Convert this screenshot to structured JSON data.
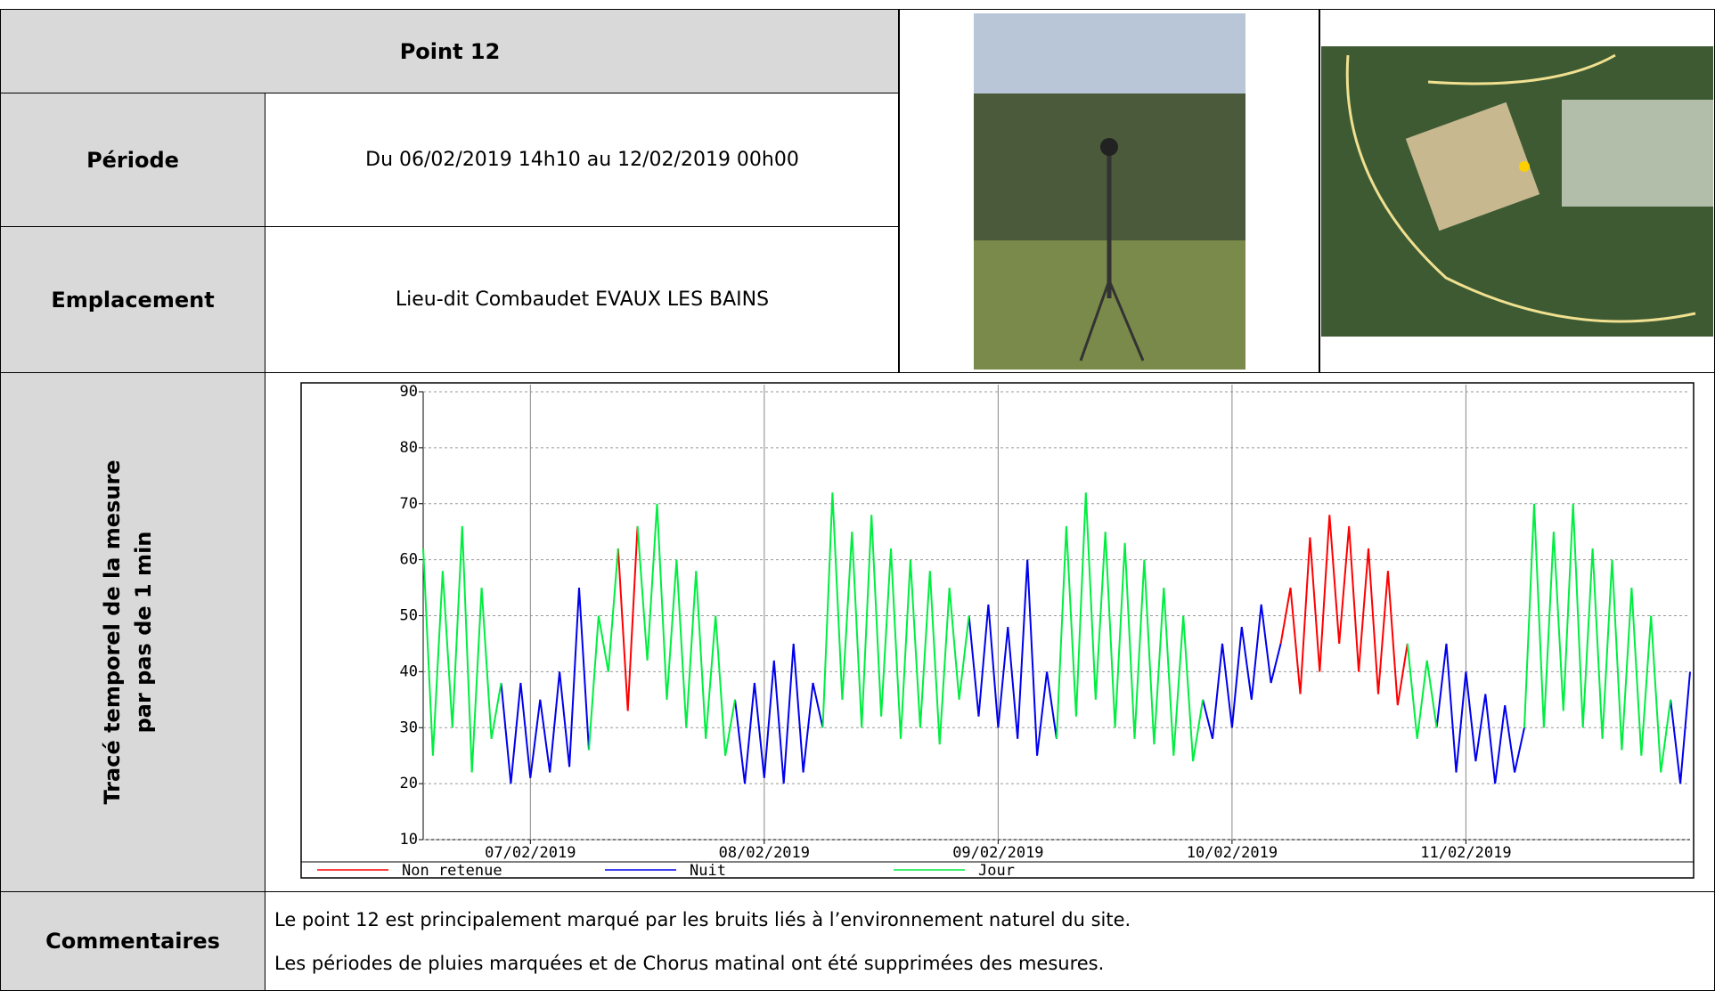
{
  "header": {
    "title": "Point 12"
  },
  "rows": [
    {
      "label": "Période",
      "value": "Du 06/02/2019 14h10 au 12/02/2019 00h00"
    },
    {
      "label": "Emplacement",
      "value": "Lieu-dit Combaudet EVAUX LES BAINS"
    }
  ],
  "chart_label": [
    "Tracé temporel de la mesure",
    "par pas de 1 min"
  ],
  "comments": {
    "label": "Commentaires",
    "lines": [
      "Le point 12 est principalement marqué par les bruits liés à l’environnement naturel du site.",
      "Les périodes de pluies marquées et de Chorus matinal ont été supprimées des mesures."
    ]
  },
  "chart_data": {
    "type": "line",
    "grid": true,
    "x": [
      13,
      14,
      15,
      16,
      17,
      18,
      19,
      20,
      21,
      22,
      23,
      24,
      25,
      26,
      27,
      28,
      29,
      30,
      31,
      32,
      33,
      34,
      35,
      36,
      37,
      38,
      39,
      40,
      41,
      42,
      43,
      44,
      45,
      46,
      47,
      48,
      49,
      50,
      51,
      52,
      53,
      54,
      55,
      56,
      57,
      58,
      59,
      60,
      61,
      62,
      63,
      64,
      65,
      66,
      67,
      68,
      69,
      70,
      71,
      72,
      73,
      74,
      75,
      76,
      77,
      78,
      79,
      80,
      81,
      82,
      83,
      84,
      85,
      86,
      87,
      88,
      89,
      90,
      91,
      92,
      93,
      94,
      95,
      96,
      97,
      98,
      99,
      100,
      101,
      102,
      103,
      104,
      105,
      106,
      107,
      108,
      109,
      110,
      111,
      112,
      113,
      114,
      115,
      116,
      117,
      118,
      119,
      120,
      121,
      122,
      123,
      124,
      125,
      126,
      127,
      128,
      129,
      130,
      131,
      132,
      133,
      134,
      135,
      136,
      137,
      138,
      139,
      140,
      141,
      142,
      143
    ],
    "xlim": [
      13,
      143
    ],
    "xticks": [
      {
        "value": 24,
        "label": "07/02/2019"
      },
      {
        "value": 48,
        "label": "08/02/2019"
      },
      {
        "value": 72,
        "label": "09/02/2019"
      },
      {
        "value": 96,
        "label": "10/02/2019"
      },
      {
        "value": 120,
        "label": "11/02/2019"
      }
    ],
    "ylim": [
      10,
      90
    ],
    "yticks": [
      10,
      20,
      30,
      40,
      50,
      60,
      70,
      80,
      90
    ],
    "series": [
      {
        "name": "Non retenue",
        "color": "#ff0000",
        "values": [
          null,
          null,
          null,
          null,
          null,
          null,
          null,
          null,
          null,
          null,
          null,
          null,
          null,
          null,
          null,
          null,
          null,
          null,
          null,
          null,
          62,
          33,
          66,
          null,
          null,
          null,
          null,
          null,
          null,
          null,
          null,
          null,
          null,
          null,
          null,
          null,
          null,
          null,
          null,
          null,
          null,
          null,
          null,
          null,
          null,
          null,
          null,
          null,
          null,
          null,
          null,
          null,
          null,
          null,
          null,
          null,
          null,
          null,
          null,
          null,
          null,
          null,
          null,
          null,
          null,
          null,
          null,
          null,
          null,
          null,
          null,
          null,
          null,
          null,
          null,
          null,
          null,
          null,
          null,
          null,
          null,
          null,
          null,
          null,
          null,
          null,
          null,
          null,
          45,
          55,
          36,
          64,
          40,
          68,
          45,
          66,
          40,
          62,
          36,
          58,
          34,
          45,
          null,
          null,
          null,
          null,
          null,
          null,
          null,
          null,
          null,
          null,
          null,
          null,
          null,
          null,
          null,
          null,
          null,
          null,
          null,
          null,
          null,
          null,
          null,
          null,
          null,
          null,
          null,
          null,
          null
        ]
      },
      {
        "name": "Nuit",
        "color": "#0000ee",
        "values": [
          null,
          null,
          null,
          null,
          null,
          null,
          null,
          null,
          38,
          20,
          38,
          21,
          35,
          22,
          40,
          23,
          55,
          26,
          null,
          null,
          null,
          null,
          null,
          null,
          null,
          null,
          null,
          null,
          null,
          null,
          null,
          null,
          35,
          20,
          38,
          21,
          42,
          20,
          45,
          22,
          38,
          30,
          null,
          null,
          null,
          null,
          null,
          null,
          null,
          null,
          null,
          null,
          null,
          null,
          null,
          null,
          50,
          32,
          52,
          30,
          48,
          28,
          60,
          25,
          40,
          28,
          null,
          null,
          null,
          null,
          null,
          null,
          null,
          null,
          null,
          null,
          null,
          null,
          null,
          null,
          35,
          28,
          45,
          30,
          48,
          35,
          52,
          38,
          45,
          null,
          null,
          null,
          null,
          null,
          null,
          null,
          null,
          null,
          null,
          null,
          null,
          null,
          null,
          null,
          30,
          45,
          22,
          40,
          24,
          36,
          20,
          34,
          22,
          30,
          null,
          null,
          null,
          null,
          null,
          null,
          null,
          null,
          null,
          null,
          null,
          null,
          null,
          null,
          35,
          20,
          40
        ]
      },
      {
        "name": "Jour",
        "color": "#00ee40",
        "values": [
          62,
          25,
          58,
          30,
          66,
          22,
          55,
          28,
          38,
          null,
          null,
          null,
          null,
          null,
          null,
          null,
          null,
          26,
          50,
          40,
          62,
          null,
          66,
          42,
          70,
          35,
          60,
          30,
          58,
          28,
          50,
          25,
          35,
          null,
          null,
          null,
          null,
          null,
          null,
          null,
          null,
          30,
          72,
          35,
          65,
          30,
          68,
          32,
          62,
          28,
          60,
          30,
          58,
          27,
          55,
          35,
          50,
          null,
          null,
          null,
          null,
          null,
          null,
          null,
          null,
          28,
          66,
          32,
          72,
          35,
          65,
          30,
          63,
          28,
          60,
          27,
          55,
          25,
          50,
          24,
          35,
          null,
          null,
          null,
          null,
          null,
          null,
          null,
          null,
          null,
          null,
          null,
          null,
          null,
          null,
          null,
          null,
          null,
          null,
          null,
          null,
          45,
          28,
          42,
          30,
          null,
          null,
          null,
          null,
          null,
          null,
          null,
          null,
          30,
          70,
          30,
          65,
          33,
          70,
          30,
          62,
          28,
          60,
          26,
          55,
          25,
          50,
          22,
          35,
          null,
          null
        ]
      }
    ]
  }
}
